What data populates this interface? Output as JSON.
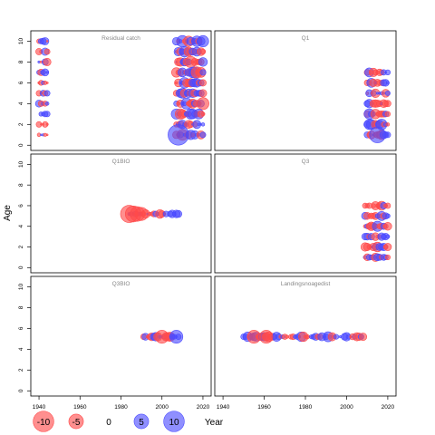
{
  "chart_data": {
    "type": "scatter",
    "subtype": "bubble-residual-panels",
    "ylabel": "Age",
    "x_ticks": [
      1940,
      1960,
      1980,
      2000,
      2020
    ],
    "y_ticks": [
      0,
      2,
      4,
      6,
      8,
      10
    ],
    "xlim": [
      1936,
      2024
    ],
    "ylim": [
      -0.5,
      11
    ],
    "legend": {
      "values": [
        -10,
        -5,
        0,
        5,
        10
      ],
      "labels": [
        "-10",
        "-5",
        "0",
        "5",
        "10"
      ],
      "axis_title": "Year",
      "placement": "bottom"
    },
    "colors": {
      "positive": "#4a4aff",
      "negative": "#ff4a4a",
      "frame": "#000000",
      "title": "#888888"
    },
    "panels": [
      {
        "title": "Residual catch",
        "series": [
          {
            "x_range": [
              1940,
              1944
            ],
            "y": 10,
            "amp": 2.2
          },
          {
            "x_range": [
              1940,
              1944
            ],
            "y": 9,
            "amp": 2.0
          },
          {
            "x_range": [
              1940,
              1944
            ],
            "y": 8,
            "amp": 1.9
          },
          {
            "x_range": [
              1940,
              1944
            ],
            "y": 7,
            "amp": 1.9
          },
          {
            "x_range": [
              1940,
              1944
            ],
            "y": 6,
            "amp": 1.1
          },
          {
            "x_range": [
              1940,
              1944
            ],
            "y": 5,
            "amp": 2.0
          },
          {
            "x_range": [
              1940,
              1944
            ],
            "y": 4,
            "amp": 1.6
          },
          {
            "x_range": [
              1940,
              1944
            ],
            "y": 3,
            "amp": 1.3
          },
          {
            "x_range": [
              1940,
              1944
            ],
            "y": 2,
            "amp": 1.3
          },
          {
            "x_range": [
              1940,
              1944
            ],
            "y": 1,
            "amp": 0.6
          },
          {
            "x_range": [
              2007,
              2020
            ],
            "y": 10,
            "amp": 4.0
          },
          {
            "x_range": [
              2007,
              2020
            ],
            "y": 9,
            "amp": 3.6
          },
          {
            "x_range": [
              2007,
              2020
            ],
            "y": 8,
            "amp": 3.4
          },
          {
            "x_range": [
              2007,
              2020
            ],
            "y": 7,
            "amp": 4.0
          },
          {
            "x_range": [
              2007,
              2020
            ],
            "y": 6,
            "amp": 3.0
          },
          {
            "x_range": [
              2007,
              2020
            ],
            "y": 5,
            "amp": 3.4
          },
          {
            "x_range": [
              2007,
              2020
            ],
            "y": 4,
            "amp": 3.6
          },
          {
            "x_range": [
              2007,
              2020
            ],
            "y": 3,
            "amp": 3.2
          },
          {
            "x_range": [
              2007,
              2020
            ],
            "y": 2,
            "amp": 3.0
          },
          {
            "x_range": [
              2007,
              2020
            ],
            "y": 1,
            "amp": 3.2
          }
        ],
        "points": [
          {
            "x": 2008,
            "y": 1,
            "v": 10
          }
        ]
      },
      {
        "title": "Q1",
        "series": [
          {
            "x_range": [
              2010,
              2020
            ],
            "y": 7,
            "amp": 2.6
          },
          {
            "x_range": [
              2010,
              2020
            ],
            "y": 6,
            "amp": 2.2
          },
          {
            "x_range": [
              2010,
              2020
            ],
            "y": 5,
            "amp": 2.6
          },
          {
            "x_range": [
              2010,
              2020
            ],
            "y": 4,
            "amp": 2.4
          },
          {
            "x_range": [
              2010,
              2020
            ],
            "y": 3,
            "amp": 3.2
          },
          {
            "x_range": [
              2010,
              2020
            ],
            "y": 2,
            "amp": 3.2
          },
          {
            "x_range": [
              2010,
              2020
            ],
            "y": 1,
            "amp": 3.0
          }
        ],
        "points": [
          {
            "x": 2015,
            "y": 1,
            "v": 6
          }
        ]
      },
      {
        "title": "Q1BIO",
        "series": [
          {
            "x_range": [
              1984,
              2008
            ],
            "y": 5.2,
            "amp": 2.0
          }
        ],
        "points": [
          {
            "x": 1984,
            "y": 5.2,
            "v": -7
          },
          {
            "x": 1986,
            "y": 5.2,
            "v": -6
          },
          {
            "x": 1988,
            "y": 5.2,
            "v": -5
          },
          {
            "x": 1990,
            "y": 5.2,
            "v": -4
          }
        ]
      },
      {
        "title": "Q3",
        "series": [
          {
            "x_range": [
              2009,
              2020
            ],
            "y": 6,
            "amp": 2.4
          },
          {
            "x_range": [
              2009,
              2020
            ],
            "y": 5,
            "amp": 2.6
          },
          {
            "x_range": [
              2009,
              2020
            ],
            "y": 4,
            "amp": 2.6
          },
          {
            "x_range": [
              2009,
              2020
            ],
            "y": 3,
            "amp": 2.4
          },
          {
            "x_range": [
              2009,
              2020
            ],
            "y": 2,
            "amp": 2.8
          },
          {
            "x_range": [
              2009,
              2020
            ],
            "y": 1,
            "amp": 2.6
          }
        ],
        "points": []
      },
      {
        "title": "Q3BIO",
        "series": [
          {
            "x_range": [
              1991,
              2008
            ],
            "y": 5.2,
            "amp": 2.6
          }
        ],
        "points": [
          {
            "x": 2007,
            "y": 5.2,
            "v": 4
          },
          {
            "x": 2000,
            "y": 5.2,
            "v": -4
          }
        ]
      },
      {
        "title": "Landingsnoagedist",
        "series": [
          {
            "x_range": [
              1950,
              2008
            ],
            "y": 5.2,
            "amp": 2.6
          }
        ],
        "points": [
          {
            "x": 1955,
            "y": 5.2,
            "v": -4
          },
          {
            "x": 1961,
            "y": 5.2,
            "v": -4
          }
        ]
      }
    ]
  }
}
